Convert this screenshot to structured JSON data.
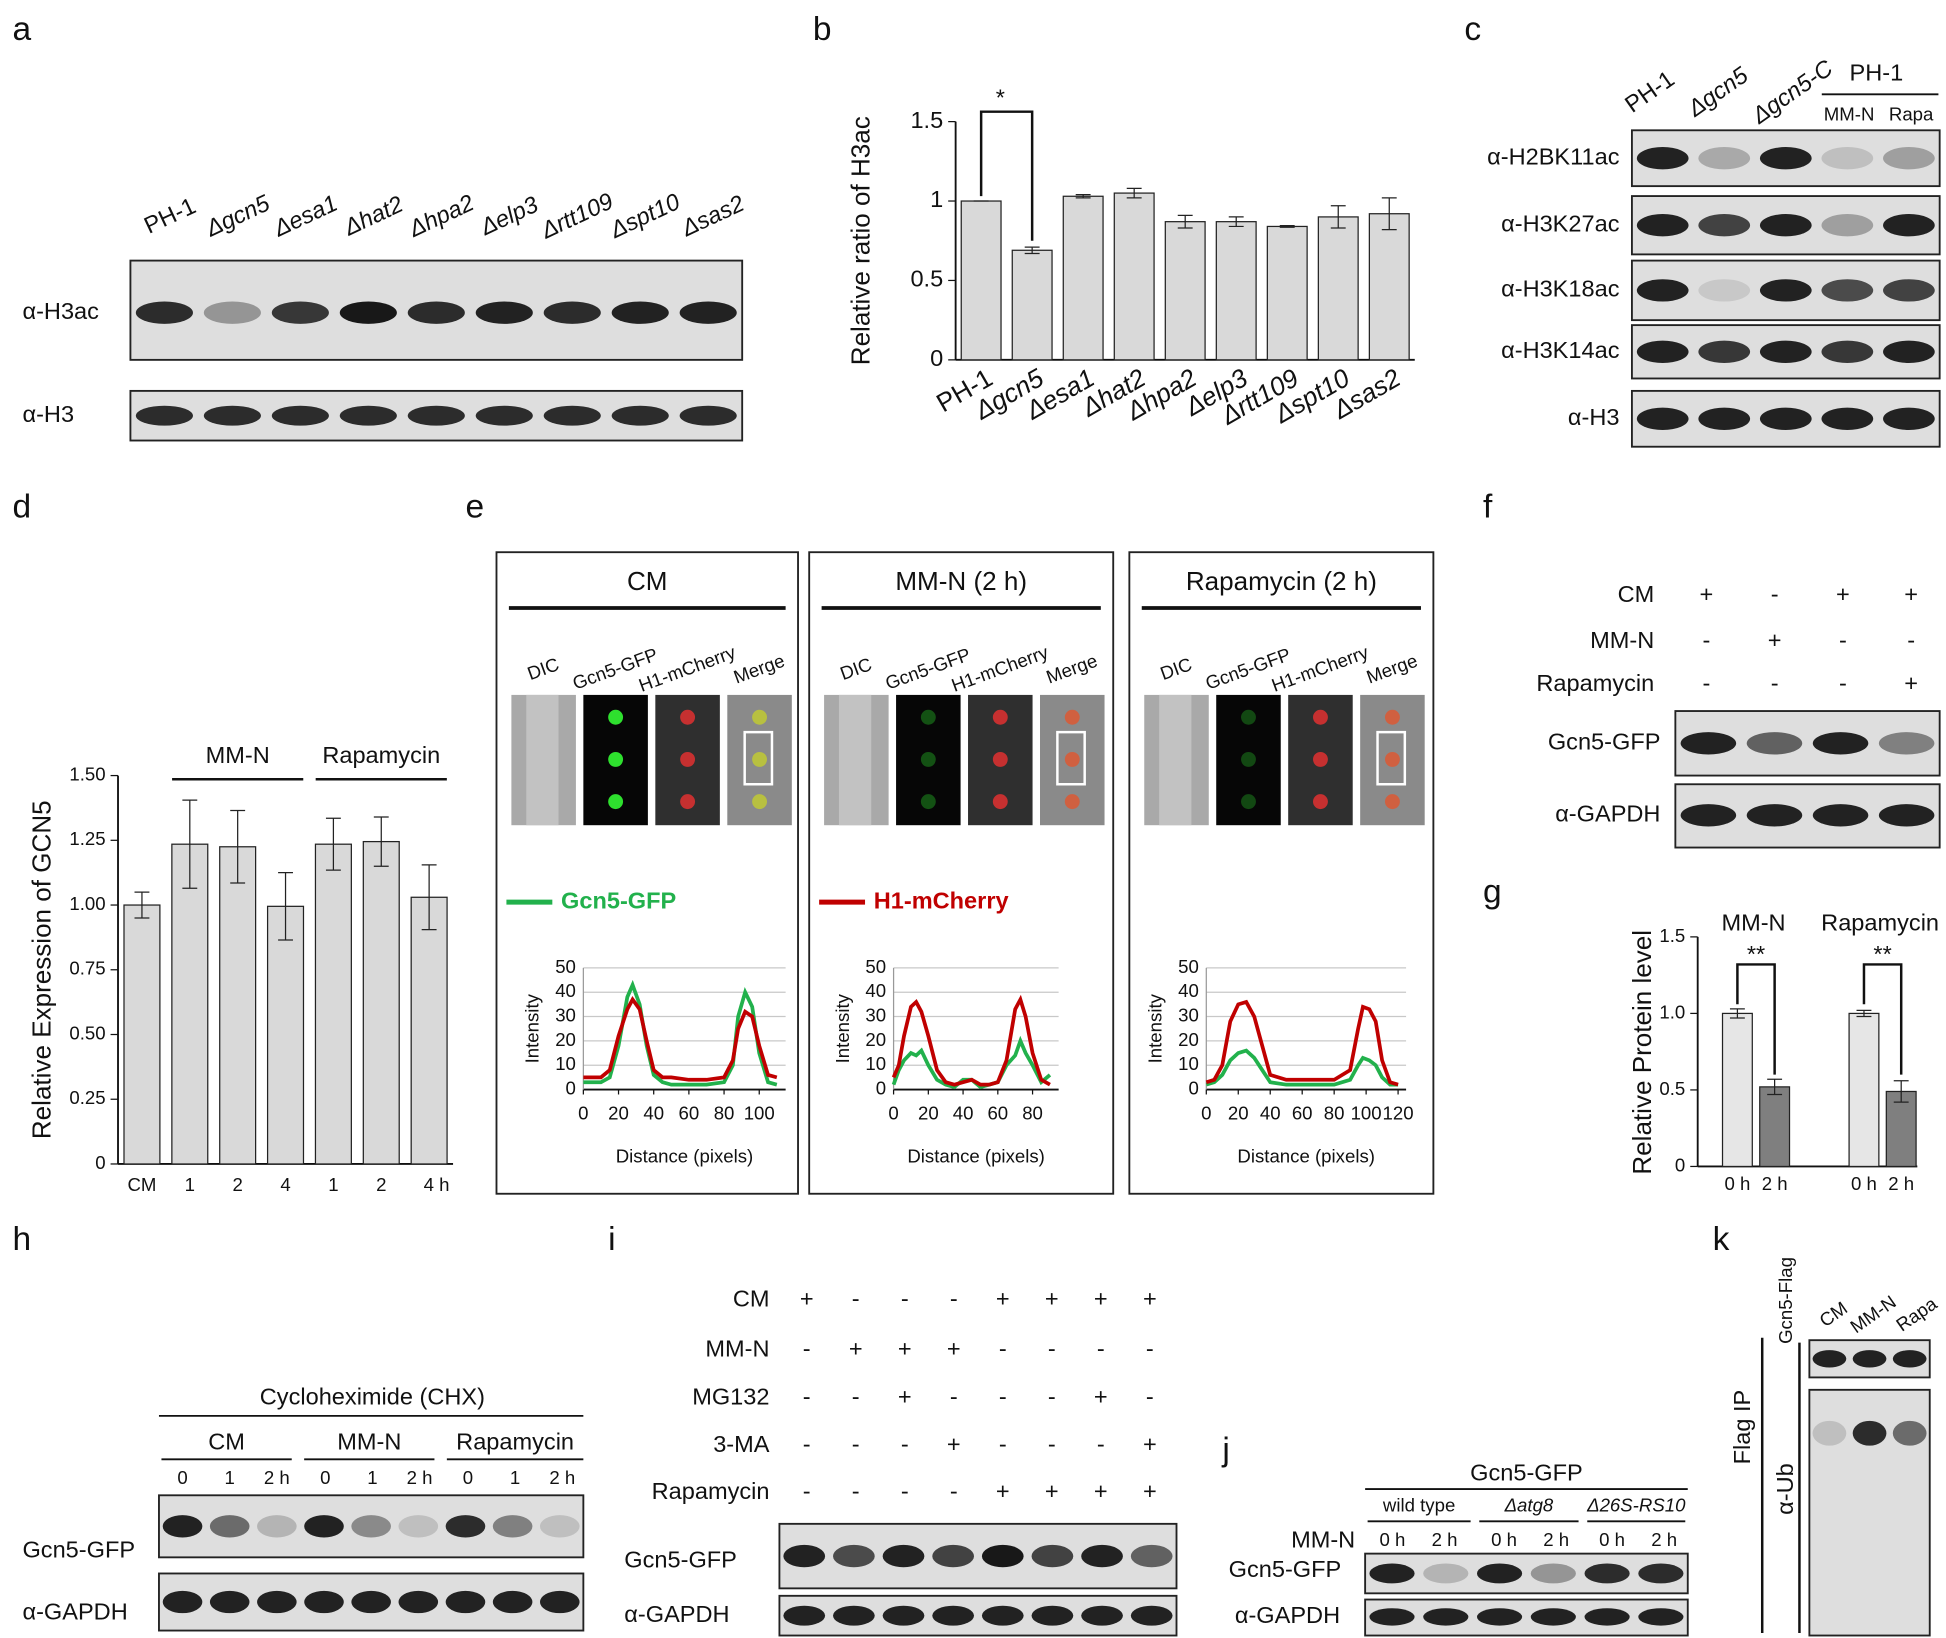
{
  "panels": [
    "a",
    "b",
    "c",
    "d",
    "e",
    "f",
    "g",
    "h",
    "i",
    "j",
    "k"
  ],
  "blot_a": {
    "lanes": [
      "PH-1",
      "Δgcn5",
      "Δesa1",
      "Δhat2",
      "Δhpa2",
      "Δelp3",
      "Δrtt109",
      "Δspt10",
      "Δsas2"
    ],
    "rows": [
      "α-H3ac",
      "α-H3"
    ]
  },
  "blot_c": {
    "lanes": [
      "PH-1",
      "Δgcn5",
      "Δgcn5-C"
    ],
    "group": "PH-1",
    "group_lanes": [
      "MM-N",
      "Rapa"
    ],
    "rows": [
      "α-H2BK11ac",
      "α-H3K27ac",
      "α-H3K18ac",
      "α-H3K14ac",
      "α-H3"
    ]
  },
  "blot_f": {
    "conditions": [
      {
        "name": "CM",
        "signs": [
          "+",
          "-",
          "+",
          "+"
        ]
      },
      {
        "name": "MM-N",
        "signs": [
          "-",
          "+",
          "-",
          "-"
        ]
      },
      {
        "name": "Rapamycin",
        "signs": [
          "-",
          "-",
          "-",
          "+"
        ]
      }
    ],
    "rows": [
      "Gcn5-GFP",
      "α-GAPDH"
    ]
  },
  "blot_h": {
    "title": "Cycloheximide (CHX)",
    "groups": [
      "CM",
      "MM-N",
      "Rapamycin"
    ],
    "times": [
      "0",
      "1",
      "2 h"
    ],
    "rows": [
      "Gcn5-GFP",
      "α-GAPDH"
    ]
  },
  "blot_i": {
    "conditions": [
      {
        "name": "CM",
        "signs": [
          "+",
          "-",
          "-",
          "-",
          "+",
          "+",
          "+",
          "+"
        ]
      },
      {
        "name": "MM-N",
        "signs": [
          "-",
          "+",
          "+",
          "+",
          "-",
          "-",
          "-",
          "-"
        ]
      },
      {
        "name": "MG132",
        "signs": [
          "-",
          "-",
          "+",
          "-",
          "-",
          "-",
          "+",
          "-"
        ]
      },
      {
        "name": "3-MA",
        "signs": [
          "-",
          "-",
          "-",
          "+",
          "-",
          "-",
          "-",
          "+"
        ]
      },
      {
        "name": "Rapamycin",
        "signs": [
          "-",
          "-",
          "-",
          "-",
          "+",
          "+",
          "+",
          "+"
        ]
      }
    ],
    "rows": [
      "Gcn5-GFP",
      "α-GAPDH"
    ]
  },
  "blot_j": {
    "title": "Gcn5-GFP",
    "groups": [
      "wild type",
      "Δatg8",
      "Δ26S-RS10"
    ],
    "condition": "MM-N",
    "times": [
      "0 h",
      "2 h"
    ],
    "rows": [
      "Gcn5-GFP",
      "α-GAPDH"
    ]
  },
  "blot_k": {
    "lanes": [
      "CM",
      "MM-N",
      "Rapa"
    ],
    "rows": [
      "Gcn5-Flag",
      "α-Ub"
    ],
    "group": "Flag IP"
  },
  "chart_data": [
    {
      "type": "bar",
      "ylabel": "Relative ratio of H3ac",
      "categories": [
        "PH-1",
        "Δgcn5",
        "Δesa1",
        "Δhat2",
        "Δhpa2",
        "Δelp3",
        "Δrtt109",
        "Δspt10",
        "Δsas2"
      ],
      "values": [
        1,
        0.69,
        1.03,
        1.05,
        0.87,
        0.87,
        0.84,
        0.9,
        0.92
      ],
      "errors": [
        0,
        0.02,
        0.01,
        0.03,
        0.04,
        0.03,
        0.005,
        0.07,
        0.1
      ],
      "color": "#d9d9d9",
      "ylim": [
        0,
        1.5
      ],
      "yticks": [
        0,
        0.5,
        1,
        1.5
      ],
      "annotations": [
        "*"
      ]
    },
    {
      "type": "bar",
      "ylabel": "Relative Expression of GCN5",
      "categories": [
        "CM",
        "1",
        "2",
        "4",
        "1",
        "2",
        "4 h"
      ],
      "values": [
        1.0,
        1.235,
        1.225,
        0.995,
        1.235,
        1.245,
        1.03
      ],
      "errors": [
        0.05,
        0.17,
        0.14,
        0.13,
        0.1,
        0.095,
        0.125
      ],
      "color": "#d9d9d9",
      "ylim": [
        0,
        1.5
      ],
      "yticks": [
        0,
        0.25,
        {
          "value": 0.5,
          "label": "0.50"
        },
        0.75,
        {
          "value": 1,
          "label": "1.00"
        },
        1.25,
        {
          "value": 1.5,
          "label": "1.50"
        }
      ],
      "group_labels": [
        "MM-N",
        "Rapamycin"
      ]
    },
    {
      "type": "grouped-bar",
      "ylabel": "Relative Protein level",
      "categories": [
        "MM-N",
        "Rapamycin"
      ],
      "series": [
        {
          "name": "0 h",
          "color": "#e6e6e6",
          "values": [
            1.0,
            1.0
          ],
          "errors": [
            0.03,
            0.02
          ]
        },
        {
          "name": "2 h",
          "color": "#7f7f7f",
          "values": [
            0.52,
            0.49
          ],
          "errors": [
            0.05,
            0.07
          ]
        }
      ],
      "ylim": [
        0,
        1.5
      ],
      "yticks": [
        0,
        0.5,
        {
          "value": 1,
          "label": "1.0"
        },
        1.5
      ],
      "annotations": [
        "**",
        "**"
      ]
    },
    {
      "type": "line",
      "title": "CM",
      "image_columns": [
        "DIC",
        "Gcn5-GFP",
        "H1-mCherry",
        "Merge"
      ],
      "xlabel": "Distance (pixels)",
      "ylabel": "Intensity",
      "x": [
        0,
        5,
        10,
        15,
        20,
        25,
        28,
        32,
        36,
        40,
        45,
        50,
        60,
        70,
        80,
        85,
        88,
        92,
        96,
        100,
        105,
        110
      ],
      "series": [
        {
          "name": "Gcn5-GFP",
          "color": "#22b14c",
          "values": [
            3,
            3,
            3,
            5,
            18,
            38,
            43,
            35,
            18,
            6,
            3,
            2,
            2,
            2,
            3,
            10,
            30,
            40,
            34,
            15,
            3,
            2
          ]
        },
        {
          "name": "H1-mCherry",
          "color": "#c00000",
          "values": [
            5,
            5,
            5,
            8,
            22,
            33,
            37,
            33,
            20,
            8,
            5,
            5,
            4,
            4,
            5,
            12,
            25,
            32,
            30,
            18,
            6,
            5
          ]
        }
      ],
      "xlim": [
        0,
        115
      ],
      "xticks": [
        0,
        20,
        40,
        60,
        80,
        100
      ],
      "ylim": [
        0,
        50
      ],
      "yticks": [
        0,
        10,
        20,
        30,
        40,
        50
      ],
      "grid": true
    },
    {
      "type": "line",
      "title": "MM-N (2 h)",
      "image_columns": [
        "DIC",
        "Gcn5-GFP",
        "H1-mCherry",
        "Merge"
      ],
      "xlabel": "Distance (pixels)",
      "ylabel": "Intensity",
      "x": [
        0,
        3,
        6,
        10,
        13,
        16,
        20,
        25,
        30,
        35,
        40,
        45,
        50,
        55,
        60,
        65,
        70,
        73,
        76,
        80,
        85,
        90
      ],
      "series": [
        {
          "name": "Gcn5-GFP",
          "color": "#22b14c",
          "values": [
            2,
            8,
            12,
            15,
            14,
            16,
            10,
            4,
            2,
            1,
            4,
            4,
            1,
            2,
            3,
            10,
            14,
            20,
            15,
            10,
            3,
            6
          ]
        },
        {
          "name": "H1-mCherry",
          "color": "#c00000",
          "values": [
            5,
            10,
            22,
            34,
            36,
            32,
            22,
            8,
            3,
            2,
            3,
            4,
            2,
            2,
            3,
            12,
            33,
            37,
            30,
            15,
            4,
            2
          ]
        }
      ],
      "xlim": [
        0,
        95
      ],
      "xticks": [
        0,
        20,
        40,
        60,
        80
      ],
      "ylim": [
        0,
        50
      ],
      "yticks": [
        0,
        10,
        20,
        30,
        40,
        50
      ],
      "grid": true
    },
    {
      "type": "line",
      "title": "Rapamycin (2 h)",
      "image_columns": [
        "DIC",
        "Gcn5-GFP",
        "H1-mCherry",
        "Merge"
      ],
      "xlabel": "Distance (pixels)",
      "ylabel": "Intensity",
      "x": [
        0,
        5,
        10,
        15,
        20,
        25,
        30,
        35,
        40,
        50,
        60,
        70,
        80,
        90,
        95,
        98,
        102,
        106,
        110,
        115,
        120
      ],
      "series": [
        {
          "name": "Gcn5-GFP",
          "color": "#22b14c",
          "values": [
            2,
            3,
            6,
            12,
            15,
            16,
            13,
            8,
            3,
            2,
            2,
            2,
            2,
            4,
            10,
            13,
            12,
            10,
            5,
            2,
            2
          ]
        },
        {
          "name": "H1-mCherry",
          "color": "#c00000",
          "values": [
            3,
            4,
            10,
            28,
            35,
            36,
            30,
            18,
            6,
            4,
            4,
            4,
            4,
            8,
            25,
            34,
            33,
            28,
            12,
            3,
            2
          ]
        }
      ],
      "xlim": [
        0,
        125
      ],
      "xticks": [
        0,
        20,
        40,
        60,
        80,
        100,
        120
      ],
      "ylim": [
        0,
        50
      ],
      "yticks": [
        0,
        10,
        20,
        30,
        40,
        50
      ],
      "grid": true
    }
  ]
}
